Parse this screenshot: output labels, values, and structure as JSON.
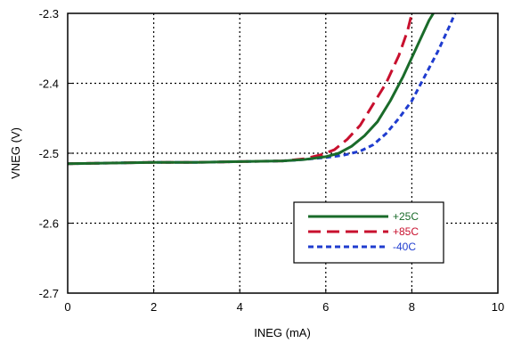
{
  "chart_data": {
    "type": "line",
    "xlabel": "INEG (mA)",
    "ylabel": "VNEG (V)",
    "xlim": [
      0,
      10
    ],
    "ylim": [
      -2.7,
      -2.3
    ],
    "xticks": [
      0,
      2,
      4,
      6,
      8,
      10
    ],
    "xtick_labels": [
      "0",
      "2",
      "4",
      "6",
      "8",
      "10"
    ],
    "yticks": [
      -2.3,
      -2.4,
      -2.5,
      -2.6,
      -2.7
    ],
    "ytick_labels": [
      "-2.3",
      "-2.4",
      "-2.5",
      "-2.6",
      "-2.7"
    ],
    "grid": true,
    "legend_position": "bottom-right",
    "series": [
      {
        "name": "+25C",
        "color": "#1a6b2a",
        "dash": "solid",
        "x": [
          0,
          1,
          2,
          3,
          4,
          5,
          5.5,
          6.0,
          6.3,
          6.6,
          6.9,
          7.2,
          7.5,
          7.8,
          8.1,
          8.4,
          8.5
        ],
        "y": [
          -2.515,
          -2.514,
          -2.513,
          -2.513,
          -2.512,
          -2.511,
          -2.509,
          -2.505,
          -2.5,
          -2.49,
          -2.475,
          -2.455,
          -2.425,
          -2.39,
          -2.35,
          -2.31,
          -2.3
        ]
      },
      {
        "name": "+85C",
        "color": "#c8102e",
        "dash": "long-dash",
        "x": [
          0,
          1,
          2,
          3,
          4,
          5,
          5.5,
          5.9,
          6.2,
          6.5,
          6.8,
          7.1,
          7.4,
          7.7,
          7.9,
          8.0
        ],
        "y": [
          -2.515,
          -2.514,
          -2.513,
          -2.513,
          -2.512,
          -2.511,
          -2.508,
          -2.502,
          -2.495,
          -2.48,
          -2.46,
          -2.43,
          -2.4,
          -2.36,
          -2.325,
          -2.3
        ]
      },
      {
        "name": "-40C",
        "color": "#1f3ccf",
        "dash": "short-dash",
        "x": [
          0,
          1,
          2,
          3,
          4,
          5,
          5.5,
          6.0,
          6.4,
          6.8,
          7.1,
          7.4,
          7.7,
          8.0,
          8.3,
          8.6,
          8.9,
          9.0
        ],
        "y": [
          -2.515,
          -2.514,
          -2.513,
          -2.513,
          -2.512,
          -2.511,
          -2.509,
          -2.506,
          -2.503,
          -2.497,
          -2.488,
          -2.472,
          -2.45,
          -2.425,
          -2.39,
          -2.355,
          -2.315,
          -2.3
        ]
      }
    ]
  }
}
